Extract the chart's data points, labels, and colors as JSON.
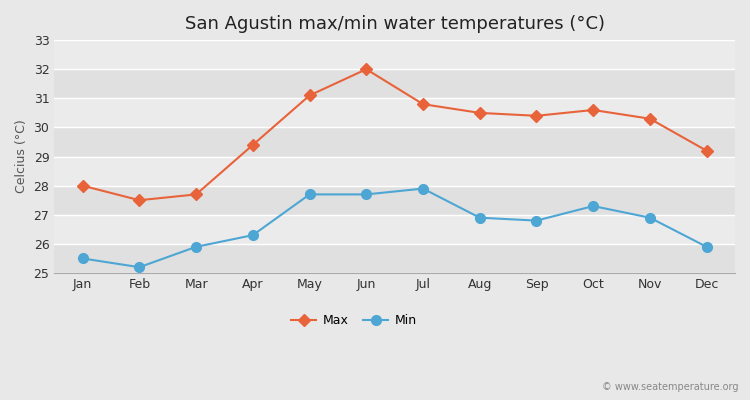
{
  "title": "San Agustin max/min water temperatures (°C)",
  "ylabel": "Celcius (°C)",
  "months": [
    "Jan",
    "Feb",
    "Mar",
    "Apr",
    "May",
    "Jun",
    "Jul",
    "Aug",
    "Sep",
    "Oct",
    "Nov",
    "Dec"
  ],
  "max_temps": [
    28.0,
    27.5,
    27.7,
    29.4,
    31.1,
    32.0,
    30.8,
    30.5,
    30.4,
    30.6,
    30.3,
    29.2
  ],
  "min_temps": [
    25.5,
    25.2,
    25.9,
    26.3,
    27.7,
    27.7,
    27.9,
    26.9,
    26.8,
    27.3,
    26.9,
    25.9
  ],
  "max_color": "#e8623a",
  "min_color": "#4da6d4",
  "fig_bg_color": "#e8e8e8",
  "plot_bg_color": "#ebebeb",
  "grid_color": "#ffffff",
  "ylim": [
    25,
    33
  ],
  "yticks": [
    25,
    26,
    27,
    28,
    29,
    30,
    31,
    32,
    33
  ],
  "watermark": "© www.seatemperature.org",
  "legend_labels": [
    "Max",
    "Min"
  ],
  "title_fontsize": 13,
  "label_fontsize": 9,
  "tick_fontsize": 9,
  "max_marker": "D",
  "min_marker": "o",
  "max_markersize": 6,
  "min_markersize": 7,
  "linewidth": 1.5
}
